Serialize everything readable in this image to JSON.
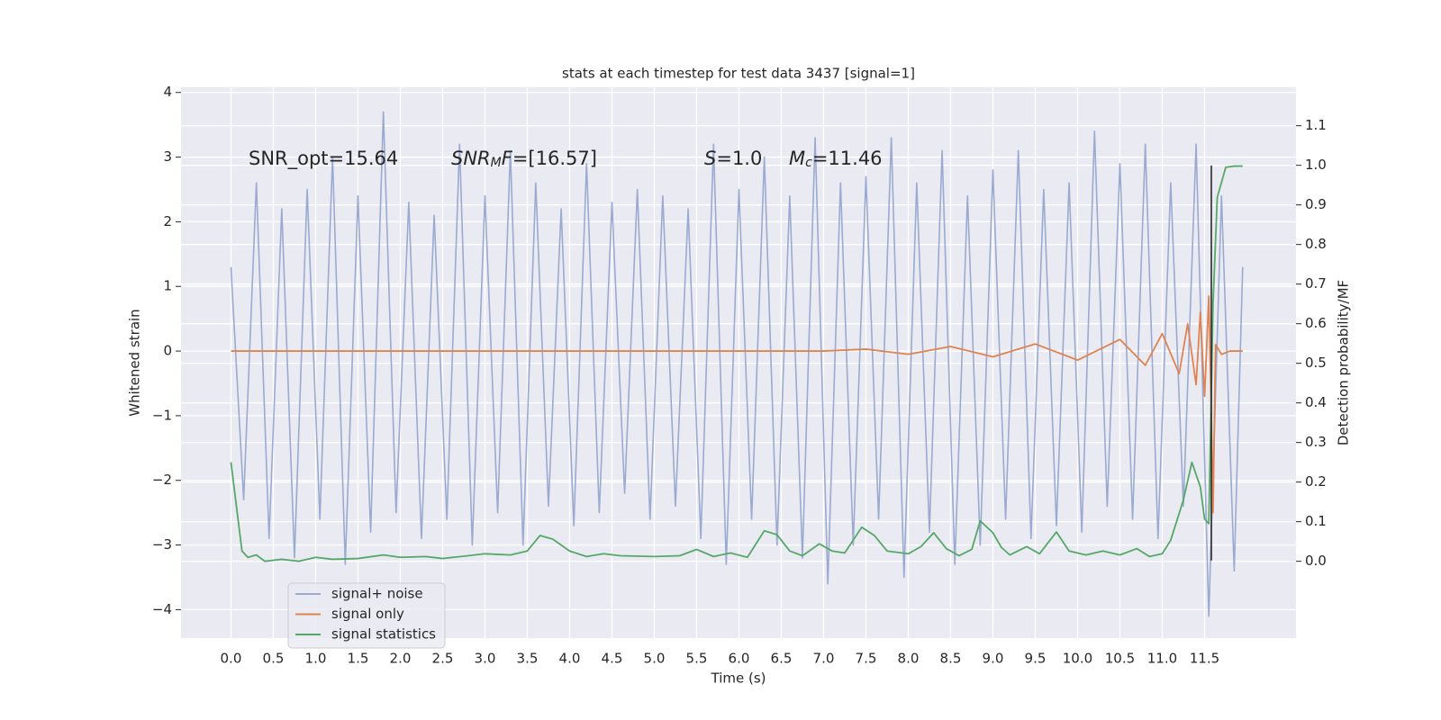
{
  "chart_data": {
    "type": "line",
    "title": "stats at each timestep for test data 3437 [signal=1]",
    "x_label": "Time (s)",
    "y_label": "Whitened strain",
    "y2_label": "Detection probability/MF",
    "xlim": [
      -0.59,
      12.58
    ],
    "ylim": [
      -4.44,
      4.08
    ],
    "y2lim": [
      -0.194,
      1.197
    ],
    "xticks": [
      {
        "value": 0,
        "label": "0.0"
      },
      0.5,
      {
        "value": 1,
        "label": "1.0"
      },
      1.5,
      {
        "value": 2,
        "label": "2.0"
      },
      2.5,
      {
        "value": 3,
        "label": "3.0"
      },
      3.5,
      {
        "value": 4,
        "label": "4.0"
      },
      4.5,
      {
        "value": 5,
        "label": "5.0"
      },
      5.5,
      {
        "value": 6,
        "label": "6.0"
      },
      6.5,
      {
        "value": 7,
        "label": "7.0"
      },
      7.5,
      {
        "value": 8,
        "label": "8.0"
      },
      8.5,
      {
        "value": 9,
        "label": "9.0"
      },
      9.5,
      {
        "value": 10,
        "label": "10.0"
      },
      10.5,
      {
        "value": 11,
        "label": "11.0"
      },
      11.5
    ],
    "yticks": [
      {
        "value": -4,
        "label": "−4"
      },
      {
        "value": -3,
        "label": "−3"
      },
      {
        "value": -2,
        "label": "−2"
      },
      {
        "value": -1,
        "label": "−1"
      },
      0,
      1,
      2,
      3,
      4
    ],
    "y2ticks": [
      {
        "value": 0,
        "label": "0.0"
      },
      0.1,
      0.2,
      0.3,
      0.4,
      0.5,
      0.6,
      0.7,
      0.8,
      0.9,
      {
        "value": 1,
        "label": "1.0"
      },
      1.1
    ],
    "grid": true,
    "legend_loc": "lower left",
    "series": [
      {
        "name": "signal+ noise",
        "color": "#9aaad0",
        "axis": "y",
        "x": [
          0,
          0.15,
          0.3,
          0.45,
          0.6,
          0.75,
          0.9,
          1.05,
          1.2,
          1.35,
          1.5,
          1.65,
          1.8,
          1.95,
          2.1,
          2.25,
          2.4,
          2.55,
          2.7,
          2.85,
          3,
          3.15,
          3.3,
          3.45,
          3.6,
          3.75,
          3.9,
          4.05,
          4.2,
          4.35,
          4.5,
          4.65,
          4.8,
          4.95,
          5.1,
          5.25,
          5.4,
          5.55,
          5.7,
          5.85,
          6,
          6.15,
          6.3,
          6.45,
          6.6,
          6.75,
          6.9,
          7.05,
          7.2,
          7.35,
          7.5,
          7.65,
          7.8,
          7.95,
          8.1,
          8.25,
          8.4,
          8.55,
          8.7,
          8.85,
          9,
          9.15,
          9.3,
          9.45,
          9.6,
          9.75,
          9.9,
          10.05,
          10.2,
          10.35,
          10.5,
          10.65,
          10.8,
          10.95,
          11.1,
          11.25,
          11.4,
          11.55,
          11.7,
          11.85,
          11.95
        ],
        "values": [
          1.3,
          -2.3,
          2.6,
          -2.9,
          2.2,
          -3.2,
          2.5,
          -2.6,
          3.0,
          -3.3,
          2.4,
          -2.8,
          3.7,
          -2.5,
          2.3,
          -2.9,
          2.1,
          -2.6,
          3.2,
          -3.0,
          2.4,
          -2.5,
          3.1,
          -3.0,
          2.6,
          -2.4,
          2.2,
          -2.7,
          2.9,
          -2.5,
          2.3,
          -2.2,
          2.5,
          -2.6,
          2.4,
          -2.4,
          2.2,
          -2.9,
          3.2,
          -3.3,
          2.5,
          -2.6,
          3.0,
          -3.0,
          2.4,
          -3.2,
          3.3,
          -3.6,
          2.6,
          -3.0,
          2.7,
          -2.6,
          3.3,
          -3.5,
          2.6,
          -2.8,
          3.1,
          -3.3,
          2.4,
          -3.0,
          2.8,
          -2.6,
          3.1,
          -2.9,
          2.5,
          -2.7,
          2.6,
          -2.8,
          3.4,
          -2.4,
          2.9,
          -2.6,
          3.2,
          -2.9,
          2.6,
          -2.4,
          3.2,
          -4.1,
          2.4,
          -3.4,
          1.3
        ]
      },
      {
        "name": "signal only",
        "color": "#dd8452",
        "axis": "y",
        "x": [
          0,
          1,
          2,
          3,
          4,
          5,
          6,
          7,
          7.5,
          8,
          8.5,
          9,
          9.5,
          10,
          10.5,
          10.8,
          11,
          11.2,
          11.3,
          11.4,
          11.45,
          11.5,
          11.55,
          11.58,
          11.6,
          11.63,
          11.7,
          11.8,
          11.95
        ],
        "values": [
          0,
          0,
          0,
          0,
          0,
          0,
          0,
          0,
          0.03,
          -0.05,
          0.07,
          -0.09,
          0.11,
          -0.14,
          0.18,
          -0.22,
          0.27,
          -0.35,
          0.42,
          -0.52,
          0.6,
          -0.7,
          0.85,
          -1.0,
          -2.5,
          0.1,
          -0.05,
          0,
          0
        ]
      },
      {
        "name": "signal statistics",
        "color": "#55a868",
        "axis": "y2",
        "x": [
          0,
          0.13,
          0.2,
          0.3,
          0.4,
          0.6,
          0.8,
          1.0,
          1.2,
          1.5,
          1.8,
          2.0,
          2.3,
          2.5,
          2.8,
          3.0,
          3.3,
          3.5,
          3.65,
          3.8,
          4.0,
          4.2,
          4.4,
          4.6,
          5.0,
          5.3,
          5.5,
          5.7,
          5.9,
          6.1,
          6.3,
          6.45,
          6.6,
          6.75,
          6.95,
          7.1,
          7.25,
          7.45,
          7.6,
          7.75,
          8.0,
          8.15,
          8.3,
          8.45,
          8.6,
          8.75,
          8.85,
          9.0,
          9.1,
          9.2,
          9.4,
          9.55,
          9.75,
          9.9,
          10.1,
          10.3,
          10.5,
          10.7,
          10.85,
          11.0,
          11.1,
          11.25,
          11.35,
          11.45,
          11.5,
          11.55,
          11.6,
          11.65,
          11.75,
          11.85,
          11.95
        ],
        "values": [
          0.25,
          0.026,
          0.01,
          0.016,
          0,
          0.005,
          0,
          0.01,
          0.005,
          0.007,
          0.016,
          0.01,
          0.012,
          0.007,
          0.014,
          0.019,
          0.016,
          0.026,
          0.065,
          0.056,
          0.026,
          0.012,
          0.019,
          0.014,
          0.012,
          0.014,
          0.03,
          0.012,
          0.021,
          0.01,
          0.077,
          0.067,
          0.026,
          0.014,
          0.044,
          0.026,
          0.021,
          0.086,
          0.065,
          0.026,
          0.019,
          0.037,
          0.072,
          0.032,
          0.014,
          0.03,
          0.102,
          0.072,
          0.035,
          0.016,
          0.037,
          0.019,
          0.074,
          0.026,
          0.016,
          0.026,
          0.016,
          0.032,
          0.012,
          0.019,
          0.053,
          0.155,
          0.25,
          0.188,
          0.107,
          0.095,
          0.652,
          0.919,
          0.995,
          0.998,
          0.998
        ]
      }
    ],
    "vline": {
      "x": 11.58,
      "ymin": -3.24,
      "ymax": 2.87,
      "color": "#2a2a2a"
    },
    "annotations": [
      {
        "parts": [
          {
            "text": "SNR_opt=15.64"
          }
        ]
      },
      {
        "parts": [
          {
            "text": "SNR",
            "italic": true
          },
          {
            "text": "M",
            "italic": true,
            "sub": true
          },
          {
            "text": "F",
            "italic": true
          },
          {
            "text": "=[16.57]"
          }
        ]
      },
      {
        "parts": [
          {
            "text": "S",
            "italic": true
          },
          {
            "text": "=1.0"
          }
        ]
      },
      {
        "parts": [
          {
            "text": "M",
            "italic": true
          },
          {
            "text": "c",
            "italic": true,
            "sub": true
          },
          {
            "text": "=11.46"
          }
        ]
      }
    ]
  }
}
